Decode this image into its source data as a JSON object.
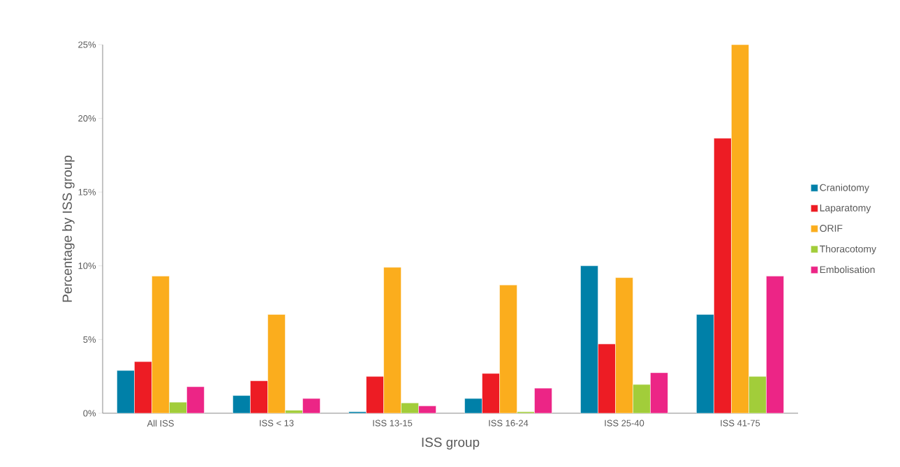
{
  "chart_data": {
    "type": "bar",
    "xlabel": "ISS group",
    "ylabel": "Percentage by ISS group",
    "categories": [
      "All ISS",
      "ISS < 13",
      "ISS 13-15",
      "ISS 16-24",
      "ISS 25-40",
      "ISS 41-75"
    ],
    "series": [
      {
        "name": "Craniotomy",
        "color": "#0080a8",
        "values": [
          2.9,
          1.2,
          0.1,
          1.0,
          10.0,
          6.7
        ]
      },
      {
        "name": "Laparatomy",
        "color": "#ed1c24",
        "values": [
          3.5,
          2.2,
          2.5,
          2.7,
          4.7,
          18.65
        ]
      },
      {
        "name": "ORIF",
        "color": "#fbad1d",
        "values": [
          9.3,
          6.7,
          9.9,
          8.7,
          9.2,
          25.0
        ]
      },
      {
        "name": "Thoracotomy",
        "color": "#a2cd3a",
        "values": [
          0.75,
          0.2,
          0.7,
          0.1,
          1.95,
          2.5
        ]
      },
      {
        "name": "Embolisation",
        "color": "#ec2586",
        "values": [
          1.8,
          1.0,
          0.5,
          1.7,
          2.75,
          9.3
        ]
      }
    ],
    "ylim": [
      0,
      25
    ],
    "yticks": [
      {
        "value": 0,
        "label": "0%"
      },
      {
        "value": 5,
        "label": "5%"
      },
      {
        "value": 10,
        "label": "10%"
      },
      {
        "value": 15,
        "label": "15%"
      },
      {
        "value": 20,
        "label": "20%"
      },
      {
        "value": 25,
        "label": "25%"
      }
    ],
    "grid": false,
    "legend": "right"
  }
}
